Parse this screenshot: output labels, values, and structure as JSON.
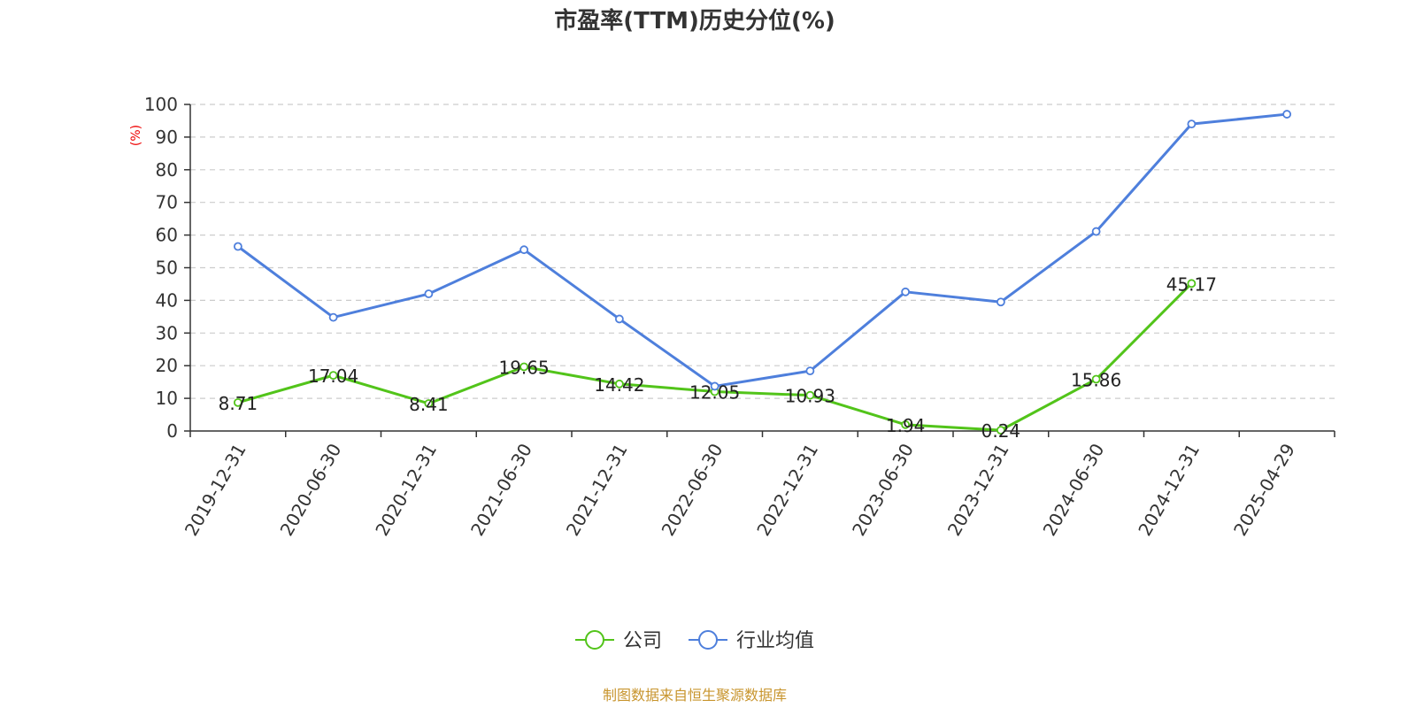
{
  "chart_data": {
    "type": "line",
    "title": "市盈率(TTM)历史分位(%)",
    "y_unit": "(%)",
    "ylim": [
      0,
      100
    ],
    "y_ticks": [
      0,
      10,
      20,
      30,
      40,
      50,
      60,
      70,
      80,
      90,
      100
    ],
    "grid": true,
    "legend_position": "bottom",
    "categories": [
      "2019-12-31",
      "2020-06-30",
      "2020-12-31",
      "2021-06-30",
      "2021-12-31",
      "2022-06-30",
      "2022-12-31",
      "2023-06-30",
      "2023-12-31",
      "2024-06-30",
      "2024-12-31",
      "2025-04-29"
    ],
    "series": [
      {
        "name": "公司",
        "color": "#52c41a",
        "show_labels": true,
        "values": [
          8.71,
          17.04,
          8.41,
          19.65,
          14.42,
          12.05,
          10.93,
          1.94,
          0.24,
          15.86,
          45.17,
          null
        ],
        "labels": [
          "8.71",
          "17.04",
          "8.41",
          "19.65",
          "14.42",
          "12.05",
          "10.93",
          "1.94",
          "0.24",
          "15.86",
          "45.17",
          ""
        ]
      },
      {
        "name": "行业均值",
        "color": "#4e7fdc",
        "show_labels": false,
        "values": [
          56.5,
          34.8,
          42.0,
          55.5,
          34.3,
          13.7,
          18.4,
          42.6,
          39.5,
          61.1,
          94.0,
          97.0
        ]
      }
    ]
  },
  "source": "制图数据来自恒生聚源数据库"
}
